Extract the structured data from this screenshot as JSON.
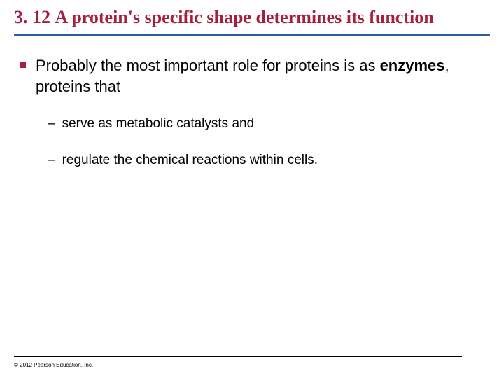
{
  "title": {
    "number": "3. 12 ",
    "text": "A protein's specific shape determines its function",
    "color": "#a5203e",
    "fontsize": 26
  },
  "rule": {
    "color": "#2b5ea3",
    "height": 3
  },
  "body": {
    "bullet_color": "#a5203e",
    "level1_fontsize": 22,
    "level2_fontsize": 19,
    "main_pre": "Probably the most important role for proteins is as ",
    "main_bold": "enzymes",
    "main_post": ", proteins that",
    "subitems": [
      "serve as metabolic catalysts and",
      "regulate the chemical reactions within cells."
    ]
  },
  "footer": {
    "copyright": "© 2012 Pearson Education, Inc.",
    "fontsize": 8
  },
  "background_color": "#ffffff"
}
